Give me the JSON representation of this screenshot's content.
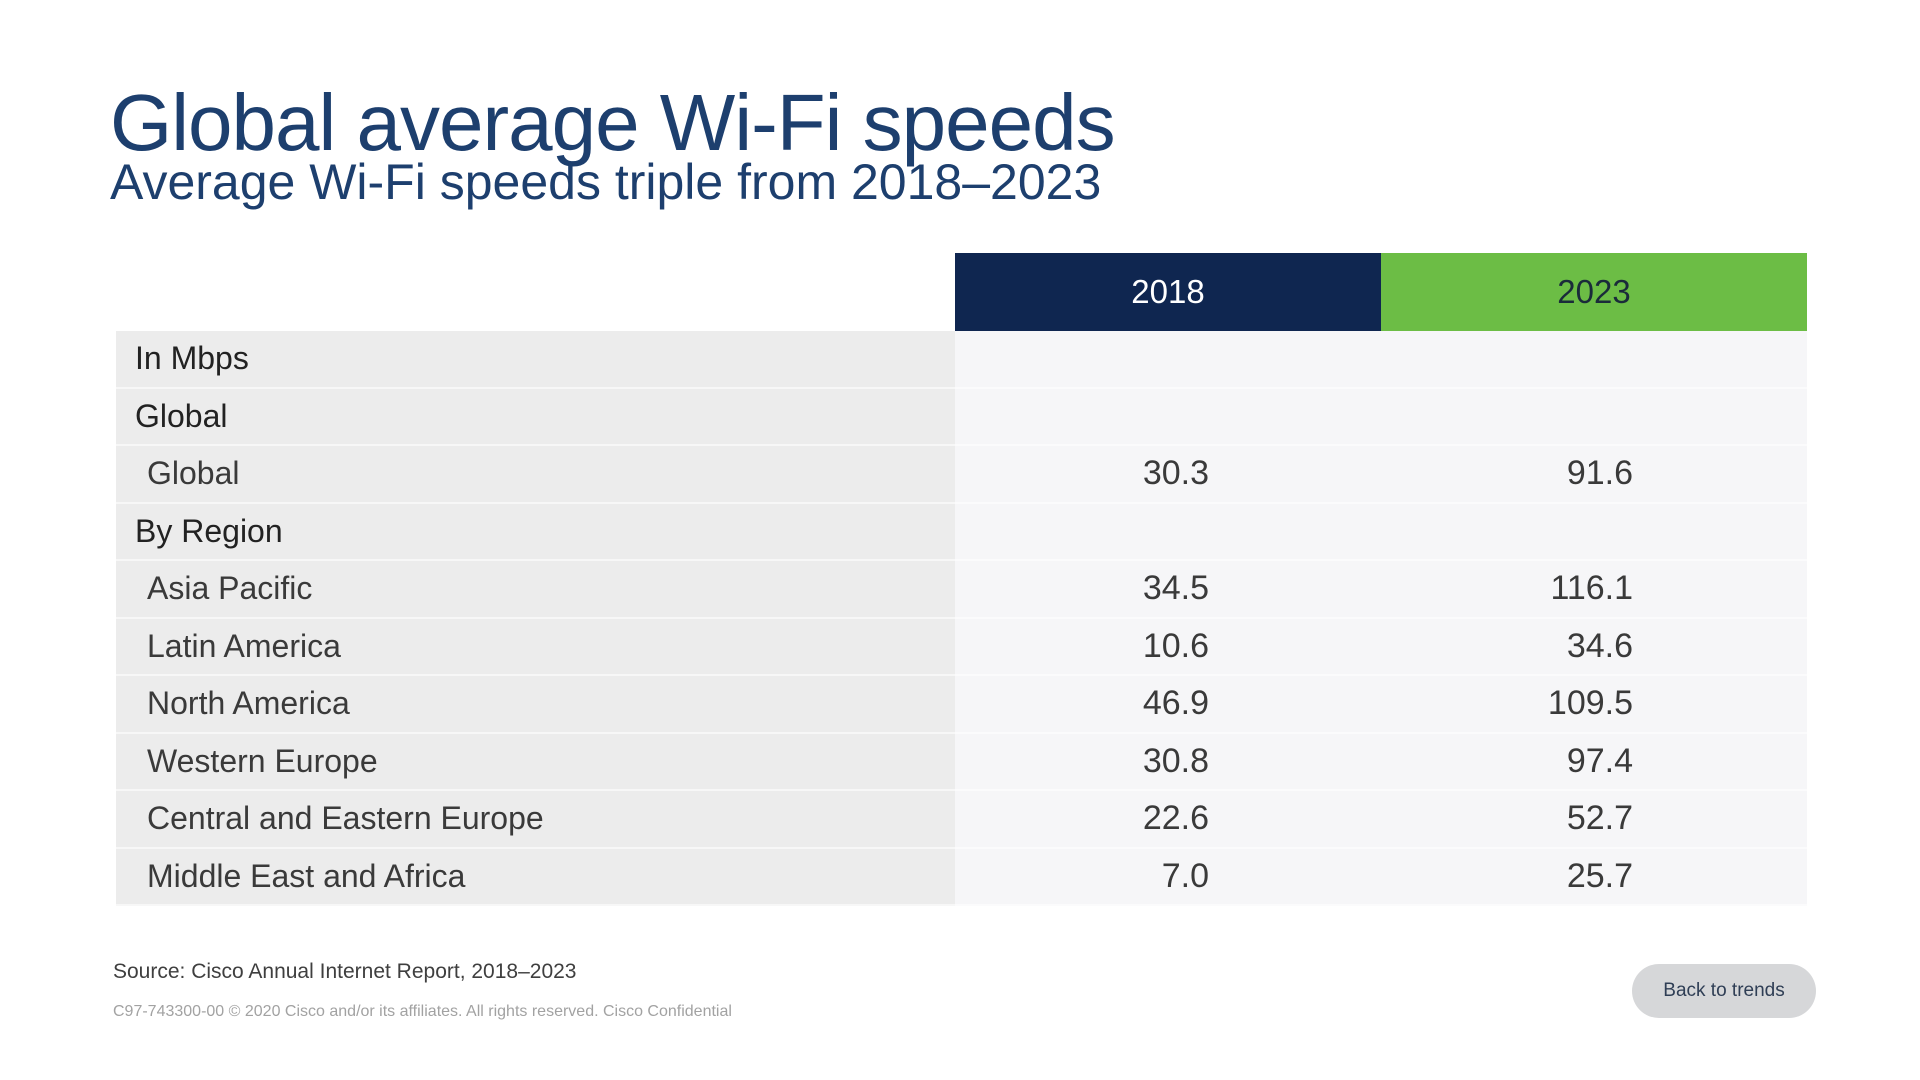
{
  "slide": {
    "title": "Global average Wi-Fi speeds",
    "subtitle": "Average Wi-Fi speeds triple from 2018–2023"
  },
  "table": {
    "columns": [
      "2018",
      "2023"
    ],
    "rows": [
      {
        "label": "In Mbps",
        "kind": "section",
        "v2018": "",
        "v2023": ""
      },
      {
        "label": "Global",
        "kind": "section",
        "v2018": "",
        "v2023": ""
      },
      {
        "label": "Global",
        "kind": "item",
        "v2018": "30.3",
        "v2023": "91.6"
      },
      {
        "label": "By Region",
        "kind": "section",
        "v2018": "",
        "v2023": ""
      },
      {
        "label": "Asia Pacific",
        "kind": "item",
        "v2018": "34.5",
        "v2023": "116.1"
      },
      {
        "label": "Latin America",
        "kind": "item",
        "v2018": "10.6",
        "v2023": "34.6"
      },
      {
        "label": "North America",
        "kind": "item",
        "v2018": "46.9",
        "v2023": "109.5"
      },
      {
        "label": "Western Europe",
        "kind": "item",
        "v2018": "30.8",
        "v2023": "97.4"
      },
      {
        "label": "Central and Eastern Europe",
        "kind": "item",
        "v2018": "22.6",
        "v2023": "52.7"
      },
      {
        "label": "Middle East and Africa",
        "kind": "item",
        "v2018": "7.0",
        "v2023": "25.7"
      }
    ]
  },
  "footer": {
    "source": "Source: Cisco Annual Internet Report, 2018–2023",
    "legal": "C97-743300-00 © 2020  Cisco and/or its affiliates. All rights reserved.   Cisco Confidential",
    "back_label": "Back to trends"
  },
  "colors": {
    "title": "#1d3f6e",
    "header_2018": "#0f2650",
    "header_2023": "#6cbd45",
    "label_bg": "#ececec",
    "value_bg": "#f6f6f8"
  }
}
